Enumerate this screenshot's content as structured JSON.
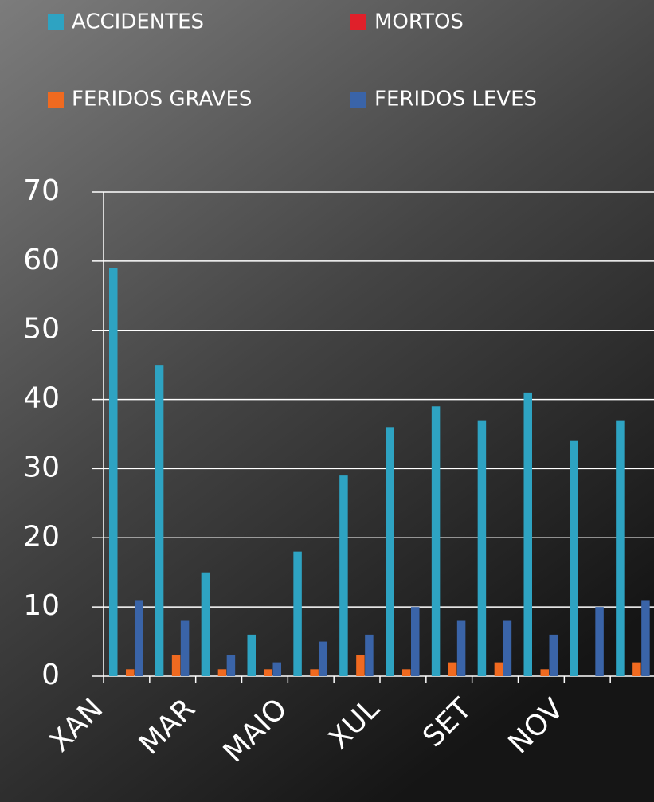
{
  "chart_data": {
    "type": "bar",
    "categories": [
      "XAN",
      null,
      "MAR",
      null,
      "MAIO",
      null,
      "XUL",
      null,
      "SET",
      null,
      "NOV",
      null
    ],
    "series": [
      {
        "name": "ACCIDENTES",
        "color": "#2ea3c2",
        "values": [
          59,
          45,
          15,
          6,
          18,
          29,
          36,
          39,
          37,
          41,
          34,
          37
        ]
      },
      {
        "name": "MORTOS",
        "color": "#e0202a",
        "values": [
          0,
          0,
          0,
          0,
          0,
          0,
          0,
          0,
          0,
          0,
          0,
          0
        ]
      },
      {
        "name": "FERIDOS GRAVES",
        "color": "#f06a20",
        "values": [
          1,
          3,
          1,
          1,
          1,
          3,
          1,
          2,
          2,
          1,
          0,
          2
        ]
      },
      {
        "name": "FERIDOS LEVES",
        "color": "#3a64a8",
        "values": [
          11,
          8,
          3,
          2,
          5,
          6,
          10,
          8,
          8,
          6,
          10,
          11
        ]
      }
    ],
    "ylim": [
      0,
      70
    ],
    "yticks": [
      0,
      10,
      20,
      30,
      40,
      50,
      60,
      70
    ],
    "grid": true,
    "legend": "top"
  }
}
